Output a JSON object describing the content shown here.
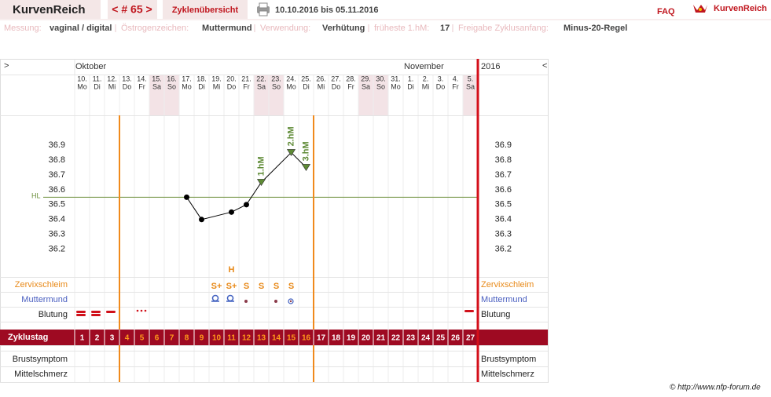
{
  "header": {
    "app_name": "KurvenReich",
    "cycle_nav": "< # 65 >",
    "overview": "Zyklenübersicht",
    "date_range": "10.10.2016 bis 05.11.2016",
    "faq": "FAQ",
    "logo_text": "KurvenReich",
    "copyright": "© http://www.nfp-forum.de"
  },
  "info": [
    {
      "label": "Messung:",
      "value": "vaginal / digital"
    },
    {
      "label": "Östrogenzeichen:",
      "value": "Muttermund"
    },
    {
      "label": "Verwendung:",
      "value": "Verhütung"
    },
    {
      "label": "früheste 1.hM:",
      "value": "17"
    },
    {
      "label": "Freigabe Zyklusanfang:",
      "value": "Minus-20-Regel"
    }
  ],
  "chart_data": {
    "type": "line",
    "nav_prev": ">",
    "nav_next": "<",
    "year": "2016",
    "months": [
      {
        "label": "Oktober",
        "x": 1
      },
      {
        "label": "November",
        "x": 23
      }
    ],
    "dates": [
      "10.",
      "11.",
      "12.",
      "13.",
      "14.",
      "15.",
      "16.",
      "17.",
      "18.",
      "19.",
      "20.",
      "21.",
      "22.",
      "23.",
      "24.",
      "25.",
      "26.",
      "27.",
      "28.",
      "29.",
      "30.",
      "31.",
      "1.",
      "2.",
      "3.",
      "4.",
      "5."
    ],
    "weekdays": [
      "Mo",
      "Di",
      "Mi",
      "Do",
      "Fr",
      "Sa",
      "So",
      "Mo",
      "Di",
      "Mi",
      "Do",
      "Fr",
      "Sa",
      "So",
      "Mo",
      "Di",
      "Mi",
      "Do",
      "Fr",
      "Sa",
      "So",
      "Mo",
      "Di",
      "Mi",
      "Do",
      "Fr",
      "Sa"
    ],
    "weekend": [
      false,
      false,
      false,
      false,
      false,
      true,
      true,
      false,
      false,
      false,
      false,
      false,
      true,
      true,
      false,
      false,
      false,
      false,
      false,
      true,
      true,
      false,
      false,
      false,
      false,
      false,
      true
    ],
    "cycle_days": [
      1,
      2,
      3,
      4,
      5,
      6,
      7,
      8,
      9,
      10,
      11,
      12,
      13,
      14,
      15,
      16,
      17,
      18,
      19,
      20,
      21,
      22,
      23,
      24,
      25,
      26,
      27
    ],
    "fertile_window": [
      4,
      16
    ],
    "ylim": [
      36.03,
      37.1
    ],
    "yticks": [
      36.9,
      36.8,
      36.7,
      36.6,
      36.5,
      36.4,
      36.3,
      36.2
    ],
    "hl_label": "HL",
    "hl_value": 36.55,
    "hl_color": "#6b8e3a",
    "series": [
      {
        "color": "#000000",
        "label_color": "#5e8a35",
        "x": [
          8,
          9,
          11,
          12,
          13,
          15,
          16
        ],
        "values": [
          36.55,
          36.4,
          36.45,
          36.5,
          36.65,
          36.85,
          36.75
        ],
        "point_labels": [
          null,
          null,
          null,
          null,
          "1.hM",
          "2.hM",
          "3.hM"
        ]
      }
    ],
    "cervix": {
      "label": "Zervixschleim",
      "x": [
        10,
        11,
        12,
        13,
        14,
        15
      ],
      "symbols": [
        "S+",
        "S+",
        "S",
        "S",
        "S",
        "S"
      ],
      "extra_x": [
        11
      ],
      "extra": [
        "H"
      ]
    },
    "os_label": "Muttermund",
    "bleeding_label": "Blutung",
    "cycle_label": "Zyklustag",
    "breast_label": "Brustsymptom",
    "mittel_label": "Mittelschmerz"
  }
}
